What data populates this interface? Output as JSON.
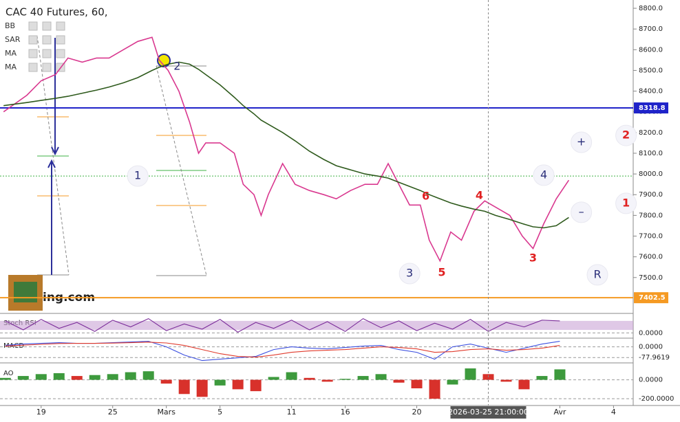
{
  "chart_data": [
    {
      "type": "line",
      "title": "CAC 40 Futures, 60,",
      "indicators": [
        "BB",
        "SAR",
        "MA",
        "MA"
      ],
      "xlim": [
        -2.3,
        33.1
      ],
      "xticks": [
        {
          "value": 0,
          "label": "19"
        },
        {
          "value": 4,
          "label": "25"
        },
        {
          "value": 7,
          "label": "Mars"
        },
        {
          "value": 10,
          "label": "5"
        },
        {
          "value": 14,
          "label": "11"
        },
        {
          "value": 17,
          "label": "16"
        },
        {
          "value": 21,
          "label": "20"
        },
        {
          "value": 29,
          "label": "Avr"
        },
        {
          "value": 32,
          "label": "4"
        }
      ],
      "crosshair": {
        "x": 25,
        "label": "2026-03-25 21:00:00"
      },
      "ylim": [
        7330,
        8840
      ],
      "yticks": [
        {
          "value": 7500,
          "label": "7500.0"
        },
        {
          "value": 7600,
          "label": "7600.0"
        },
        {
          "value": 7700,
          "label": "7700.0"
        },
        {
          "value": 7800,
          "label": "7800.0"
        },
        {
          "value": 7900,
          "label": "7900.0"
        },
        {
          "value": 8000,
          "label": "8000.0"
        },
        {
          "value": 8100,
          "label": "8100.0"
        },
        {
          "value": 8200,
          "label": "8200.0"
        },
        {
          "value": 8300,
          "label": "8300.0"
        },
        {
          "value": 8400,
          "label": "8400.0"
        },
        {
          "value": 8500,
          "label": "8500.0"
        },
        {
          "value": 8600,
          "label": "8600.0"
        },
        {
          "value": 8700,
          "label": "8700.0"
        },
        {
          "value": 8800,
          "label": "8800.0"
        }
      ],
      "x": [
        -2.1,
        -0.8,
        0,
        0.8,
        1.5,
        2.3,
        3.1,
        3.8,
        4.6,
        5.4,
        6.2,
        6.6,
        7.1,
        7.7,
        8.3,
        8.8,
        9.2,
        10,
        10.8,
        11.3,
        11.9,
        12.3,
        12.7,
        13.5,
        14.2,
        15,
        15.8,
        16.5,
        17.3,
        18.1,
        18.8,
        19.4,
        20,
        20.6,
        21.2,
        21.7,
        22.3,
        22.9,
        23.5,
        24.2,
        24.8,
        25.4,
        26.2,
        26.9,
        27.5,
        28.1,
        28.8,
        29.5
      ],
      "series": [
        {
          "color": "#d9388f",
          "values": [
            8300,
            8380,
            8450,
            8480,
            8560,
            8540,
            8560,
            8560,
            8600,
            8640,
            8660,
            8550,
            8500,
            8400,
            8250,
            8100,
            8150,
            8150,
            8100,
            7950,
            7900,
            7800,
            7900,
            8050,
            7950,
            7920,
            7900,
            7880,
            7920,
            7950,
            7950,
            8050,
            7950,
            7850,
            7850,
            7680,
            7580,
            7720,
            7680,
            7820,
            7870,
            7840,
            7800,
            7700,
            7640,
            7760,
            7880,
            7970
          ]
        },
        {
          "color": "#2e5a1c",
          "values": [
            8330,
            8345,
            8355,
            8365,
            8375,
            8390,
            8405,
            8420,
            8440,
            8465,
            8500,
            8515,
            8530,
            8540,
            8530,
            8505,
            8480,
            8430,
            8370,
            8330,
            8290,
            8260,
            8240,
            8200,
            8160,
            8110,
            8070,
            8040,
            8020,
            8000,
            7990,
            7980,
            7960,
            7940,
            7920,
            7900,
            7880,
            7860,
            7845,
            7830,
            7820,
            7800,
            7780,
            7760,
            7745,
            7740,
            7750,
            7790
          ]
        }
      ],
      "hlines": [
        {
          "value": 8318.8,
          "color": "#1f23c9",
          "show_label": true
        },
        {
          "value": 7402.5,
          "color": "#f59a23",
          "show_label": true
        },
        {
          "value": 7990,
          "color": "#3cb043",
          "show_label": false
        }
      ],
      "annotations": [
        {
          "text": "1",
          "x": 5.4,
          "y": 7990,
          "color": "#2b2f7a",
          "circle": true
        },
        {
          "text": "2",
          "x": 7.6,
          "y": 8518,
          "color": "#2b2f7a",
          "circle": false
        },
        {
          "text": "3",
          "x": 20.6,
          "y": 7519,
          "color": "#2b2f7a",
          "circle": true
        },
        {
          "text": "4",
          "x": 28.1,
          "y": 7994,
          "color": "#2b2f7a",
          "circle": true
        },
        {
          "text": "R",
          "x": 31.1,
          "y": 7513,
          "color": "#2b2f7a",
          "circle": true
        },
        {
          "text": "+",
          "x": 30.2,
          "y": 8153,
          "color": "#2b2f7a",
          "circle": true
        },
        {
          "text": "–",
          "x": 30.2,
          "y": 7815,
          "color": "#2b2f7a",
          "circle": true
        },
        {
          "text": "2",
          "x": 32.7,
          "y": 8186,
          "color": "#e02020",
          "circle": true
        },
        {
          "text": "1",
          "x": 32.7,
          "y": 7858,
          "color": "#e02020",
          "circle": true
        },
        {
          "text": "6",
          "x": 21.5,
          "y": 7891,
          "color": "#e02020",
          "circle": false
        },
        {
          "text": "4",
          "x": 24.5,
          "y": 7894,
          "color": "#e02020",
          "circle": false
        },
        {
          "text": "5",
          "x": 22.4,
          "y": 7523,
          "color": "#e02020",
          "circle": false
        },
        {
          "text": "3",
          "x": 27.5,
          "y": 7592,
          "color": "#e02020",
          "circle": false
        }
      ],
      "logo": "ing.com"
    },
    {
      "type": "line",
      "title": "Stoch RSI",
      "ylim": [
        -30,
        125
      ],
      "band": [
        20,
        80
      ],
      "band_color": "#c9a3d6",
      "yticks": [
        {
          "value": 0,
          "label": "0.0000"
        }
      ],
      "x": [
        -2,
        -1,
        0,
        1,
        2,
        3,
        4,
        5,
        6,
        7,
        8,
        9,
        10,
        11,
        12,
        13,
        14,
        15,
        16,
        17,
        18,
        19,
        20,
        21,
        22,
        23,
        24,
        25,
        26,
        27,
        28,
        29
      ],
      "series": [
        {
          "color": "#7b2c9a",
          "values": [
            80,
            20,
            90,
            30,
            70,
            10,
            85,
            40,
            95,
            15,
            60,
            25,
            90,
            5,
            70,
            30,
            85,
            20,
            75,
            10,
            95,
            35,
            80,
            15,
            65,
            25,
            90,
            10,
            70,
            40,
            85,
            80
          ]
        }
      ]
    },
    {
      "type": "line",
      "title": "MACD",
      "ylim": [
        -112,
        58
      ],
      "yticks": [
        {
          "value": 0,
          "label": "0.0000"
        },
        {
          "value": -77.9619,
          "label": "-77.9619"
        }
      ],
      "x": [
        -2,
        -1,
        0,
        1,
        2,
        3,
        4,
        5,
        6,
        7,
        8,
        9,
        10,
        11,
        12,
        13,
        14,
        15,
        16,
        17,
        18,
        19,
        20,
        21,
        22,
        23,
        24,
        25,
        26,
        27,
        28,
        29
      ],
      "series": [
        {
          "color": "#3b4fe0",
          "values": [
            10,
            20,
            25,
            30,
            25,
            25,
            30,
            35,
            40,
            0,
            -60,
            -100,
            -90,
            -80,
            -70,
            -20,
            0,
            -10,
            -15,
            -5,
            5,
            10,
            -20,
            -40,
            -90,
            0,
            20,
            -10,
            -40,
            -10,
            20,
            40
          ]
        },
        {
          "color": "#e0392b",
          "values": [
            5,
            12,
            18,
            24,
            25,
            25,
            27,
            30,
            34,
            28,
            10,
            -20,
            -50,
            -70,
            -75,
            -60,
            -40,
            -30,
            -25,
            -20,
            -10,
            0,
            -5,
            -15,
            -40,
            -35,
            -20,
            -15,
            -25,
            -20,
            -10,
            10
          ]
        }
      ]
    },
    {
      "type": "bar",
      "title": "AO",
      "ylim": [
        -264,
        171
      ],
      "up_color": "#3d9a3d",
      "down_color": "#d8312b",
      "yticks": [
        {
          "value": 0,
          "label": "0.0000"
        },
        {
          "value": -200,
          "label": "-200.0000"
        }
      ],
      "x": [
        -2,
        -1,
        0,
        1,
        2,
        3,
        4,
        5,
        6,
        7,
        8,
        9,
        10,
        11,
        12,
        13,
        14,
        15,
        16,
        17,
        18,
        19,
        20,
        21,
        22,
        23,
        24,
        25,
        26,
        27,
        28,
        29
      ],
      "values": [
        20,
        40,
        60,
        70,
        40,
        50,
        60,
        80,
        90,
        -40,
        -150,
        -180,
        -60,
        -100,
        -120,
        30,
        80,
        20,
        -20,
        10,
        40,
        60,
        -30,
        -90,
        -200,
        -50,
        120,
        60,
        -20,
        -100,
        40,
        110
      ]
    }
  ]
}
